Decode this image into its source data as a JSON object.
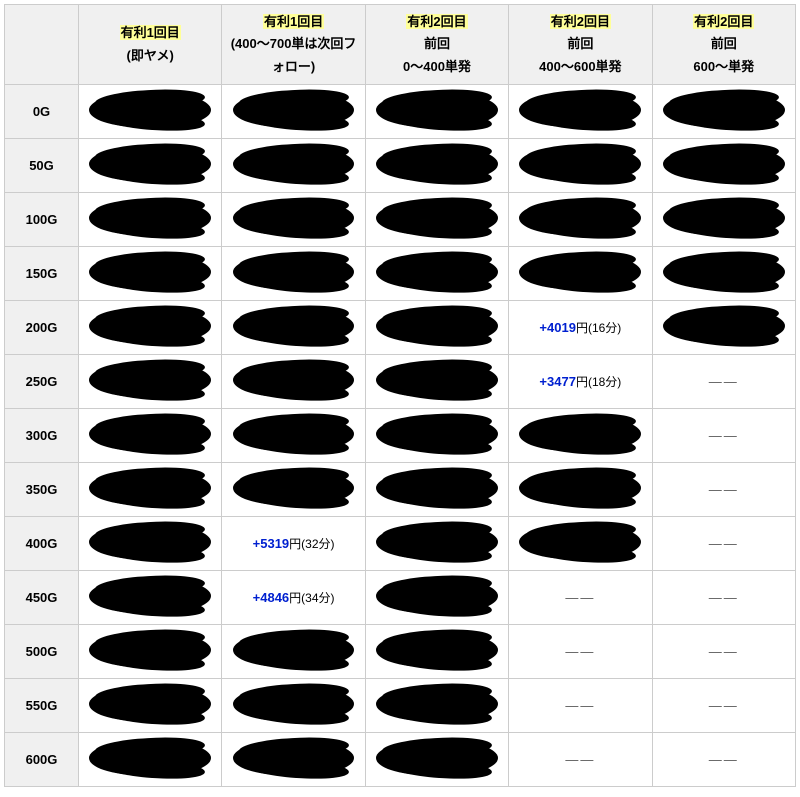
{
  "table": {
    "highlight_bg": "#ffff99",
    "value_color": "#0020d0",
    "header_bg": "#f0f0f0",
    "border_color": "#cccccc",
    "columns": [
      {
        "title": "有利1回目",
        "sub": "(即ヤメ)"
      },
      {
        "title": "有利1回目",
        "sub": "(400～700単は次回フォロー)"
      },
      {
        "title": "有利2回目",
        "sub": "前回\n0～400単発"
      },
      {
        "title": "有利2回目",
        "sub": "前回\n400～600単発"
      },
      {
        "title": "有利2回目",
        "sub": "前回\n600～単発"
      }
    ],
    "rows": [
      {
        "label": "0G",
        "cells": [
          {
            "t": "s"
          },
          {
            "t": "s"
          },
          {
            "t": "s"
          },
          {
            "t": "s"
          },
          {
            "t": "s"
          }
        ]
      },
      {
        "label": "50G",
        "cells": [
          {
            "t": "s"
          },
          {
            "t": "s"
          },
          {
            "t": "s"
          },
          {
            "t": "s"
          },
          {
            "t": "s"
          }
        ]
      },
      {
        "label": "100G",
        "cells": [
          {
            "t": "s"
          },
          {
            "t": "s"
          },
          {
            "t": "s"
          },
          {
            "t": "s"
          },
          {
            "t": "s"
          }
        ]
      },
      {
        "label": "150G",
        "cells": [
          {
            "t": "s"
          },
          {
            "t": "s"
          },
          {
            "t": "s"
          },
          {
            "t": "s"
          },
          {
            "t": "s"
          }
        ]
      },
      {
        "label": "200G",
        "cells": [
          {
            "t": "s"
          },
          {
            "t": "s"
          },
          {
            "t": "s"
          },
          {
            "t": "v",
            "amount": "+4019",
            "unit": "円",
            "note": "(16分)"
          },
          {
            "t": "s"
          }
        ]
      },
      {
        "label": "250G",
        "cells": [
          {
            "t": "s"
          },
          {
            "t": "s"
          },
          {
            "t": "s"
          },
          {
            "t": "v",
            "amount": "+3477",
            "unit": "円",
            "note": "(18分)"
          },
          {
            "t": "d"
          }
        ]
      },
      {
        "label": "300G",
        "cells": [
          {
            "t": "s"
          },
          {
            "t": "s"
          },
          {
            "t": "s"
          },
          {
            "t": "s"
          },
          {
            "t": "d"
          }
        ]
      },
      {
        "label": "350G",
        "cells": [
          {
            "t": "s"
          },
          {
            "t": "s"
          },
          {
            "t": "s"
          },
          {
            "t": "s"
          },
          {
            "t": "d"
          }
        ]
      },
      {
        "label": "400G",
        "cells": [
          {
            "t": "s"
          },
          {
            "t": "v",
            "amount": "+5319",
            "unit": "円",
            "note": "(32分)"
          },
          {
            "t": "s"
          },
          {
            "t": "s"
          },
          {
            "t": "d"
          }
        ]
      },
      {
        "label": "450G",
        "cells": [
          {
            "t": "s"
          },
          {
            "t": "v",
            "amount": "+4846",
            "unit": "円",
            "note": "(34分)"
          },
          {
            "t": "s"
          },
          {
            "t": "d"
          },
          {
            "t": "d"
          }
        ]
      },
      {
        "label": "500G",
        "cells": [
          {
            "t": "s"
          },
          {
            "t": "s"
          },
          {
            "t": "s"
          },
          {
            "t": "d"
          },
          {
            "t": "d"
          }
        ]
      },
      {
        "label": "550G",
        "cells": [
          {
            "t": "s"
          },
          {
            "t": "s"
          },
          {
            "t": "s"
          },
          {
            "t": "d"
          },
          {
            "t": "d"
          }
        ]
      },
      {
        "label": "600G",
        "cells": [
          {
            "t": "s"
          },
          {
            "t": "s"
          },
          {
            "t": "s"
          },
          {
            "t": "d"
          },
          {
            "t": "d"
          }
        ]
      }
    ],
    "dash_text": "——"
  }
}
